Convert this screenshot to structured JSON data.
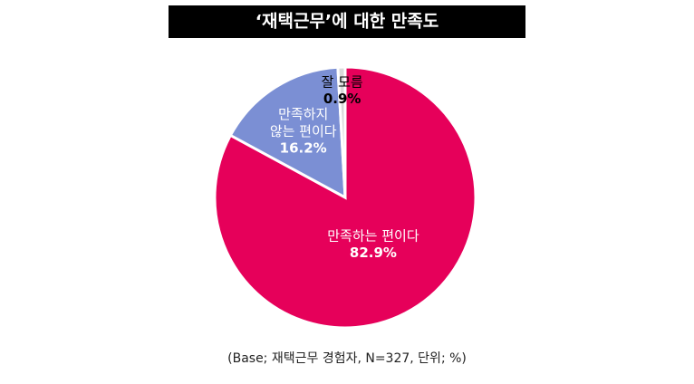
{
  "chart_data": {
    "type": "pie",
    "title": "‘재택근무’에 대한 만족도",
    "categories": [
      "만족하는 편이다",
      "만족하지\n않는 편이다",
      "잘 모름"
    ],
    "values": [
      82.9,
      16.2,
      0.9
    ],
    "value_labels": [
      "82.9%",
      "16.2%",
      "0.9%"
    ],
    "colors": [
      "#e6005a",
      "#7b8fd4",
      "#d9d9d9"
    ],
    "note": "(Base; 재택근무 경험자, N=327, 단위; %)"
  }
}
